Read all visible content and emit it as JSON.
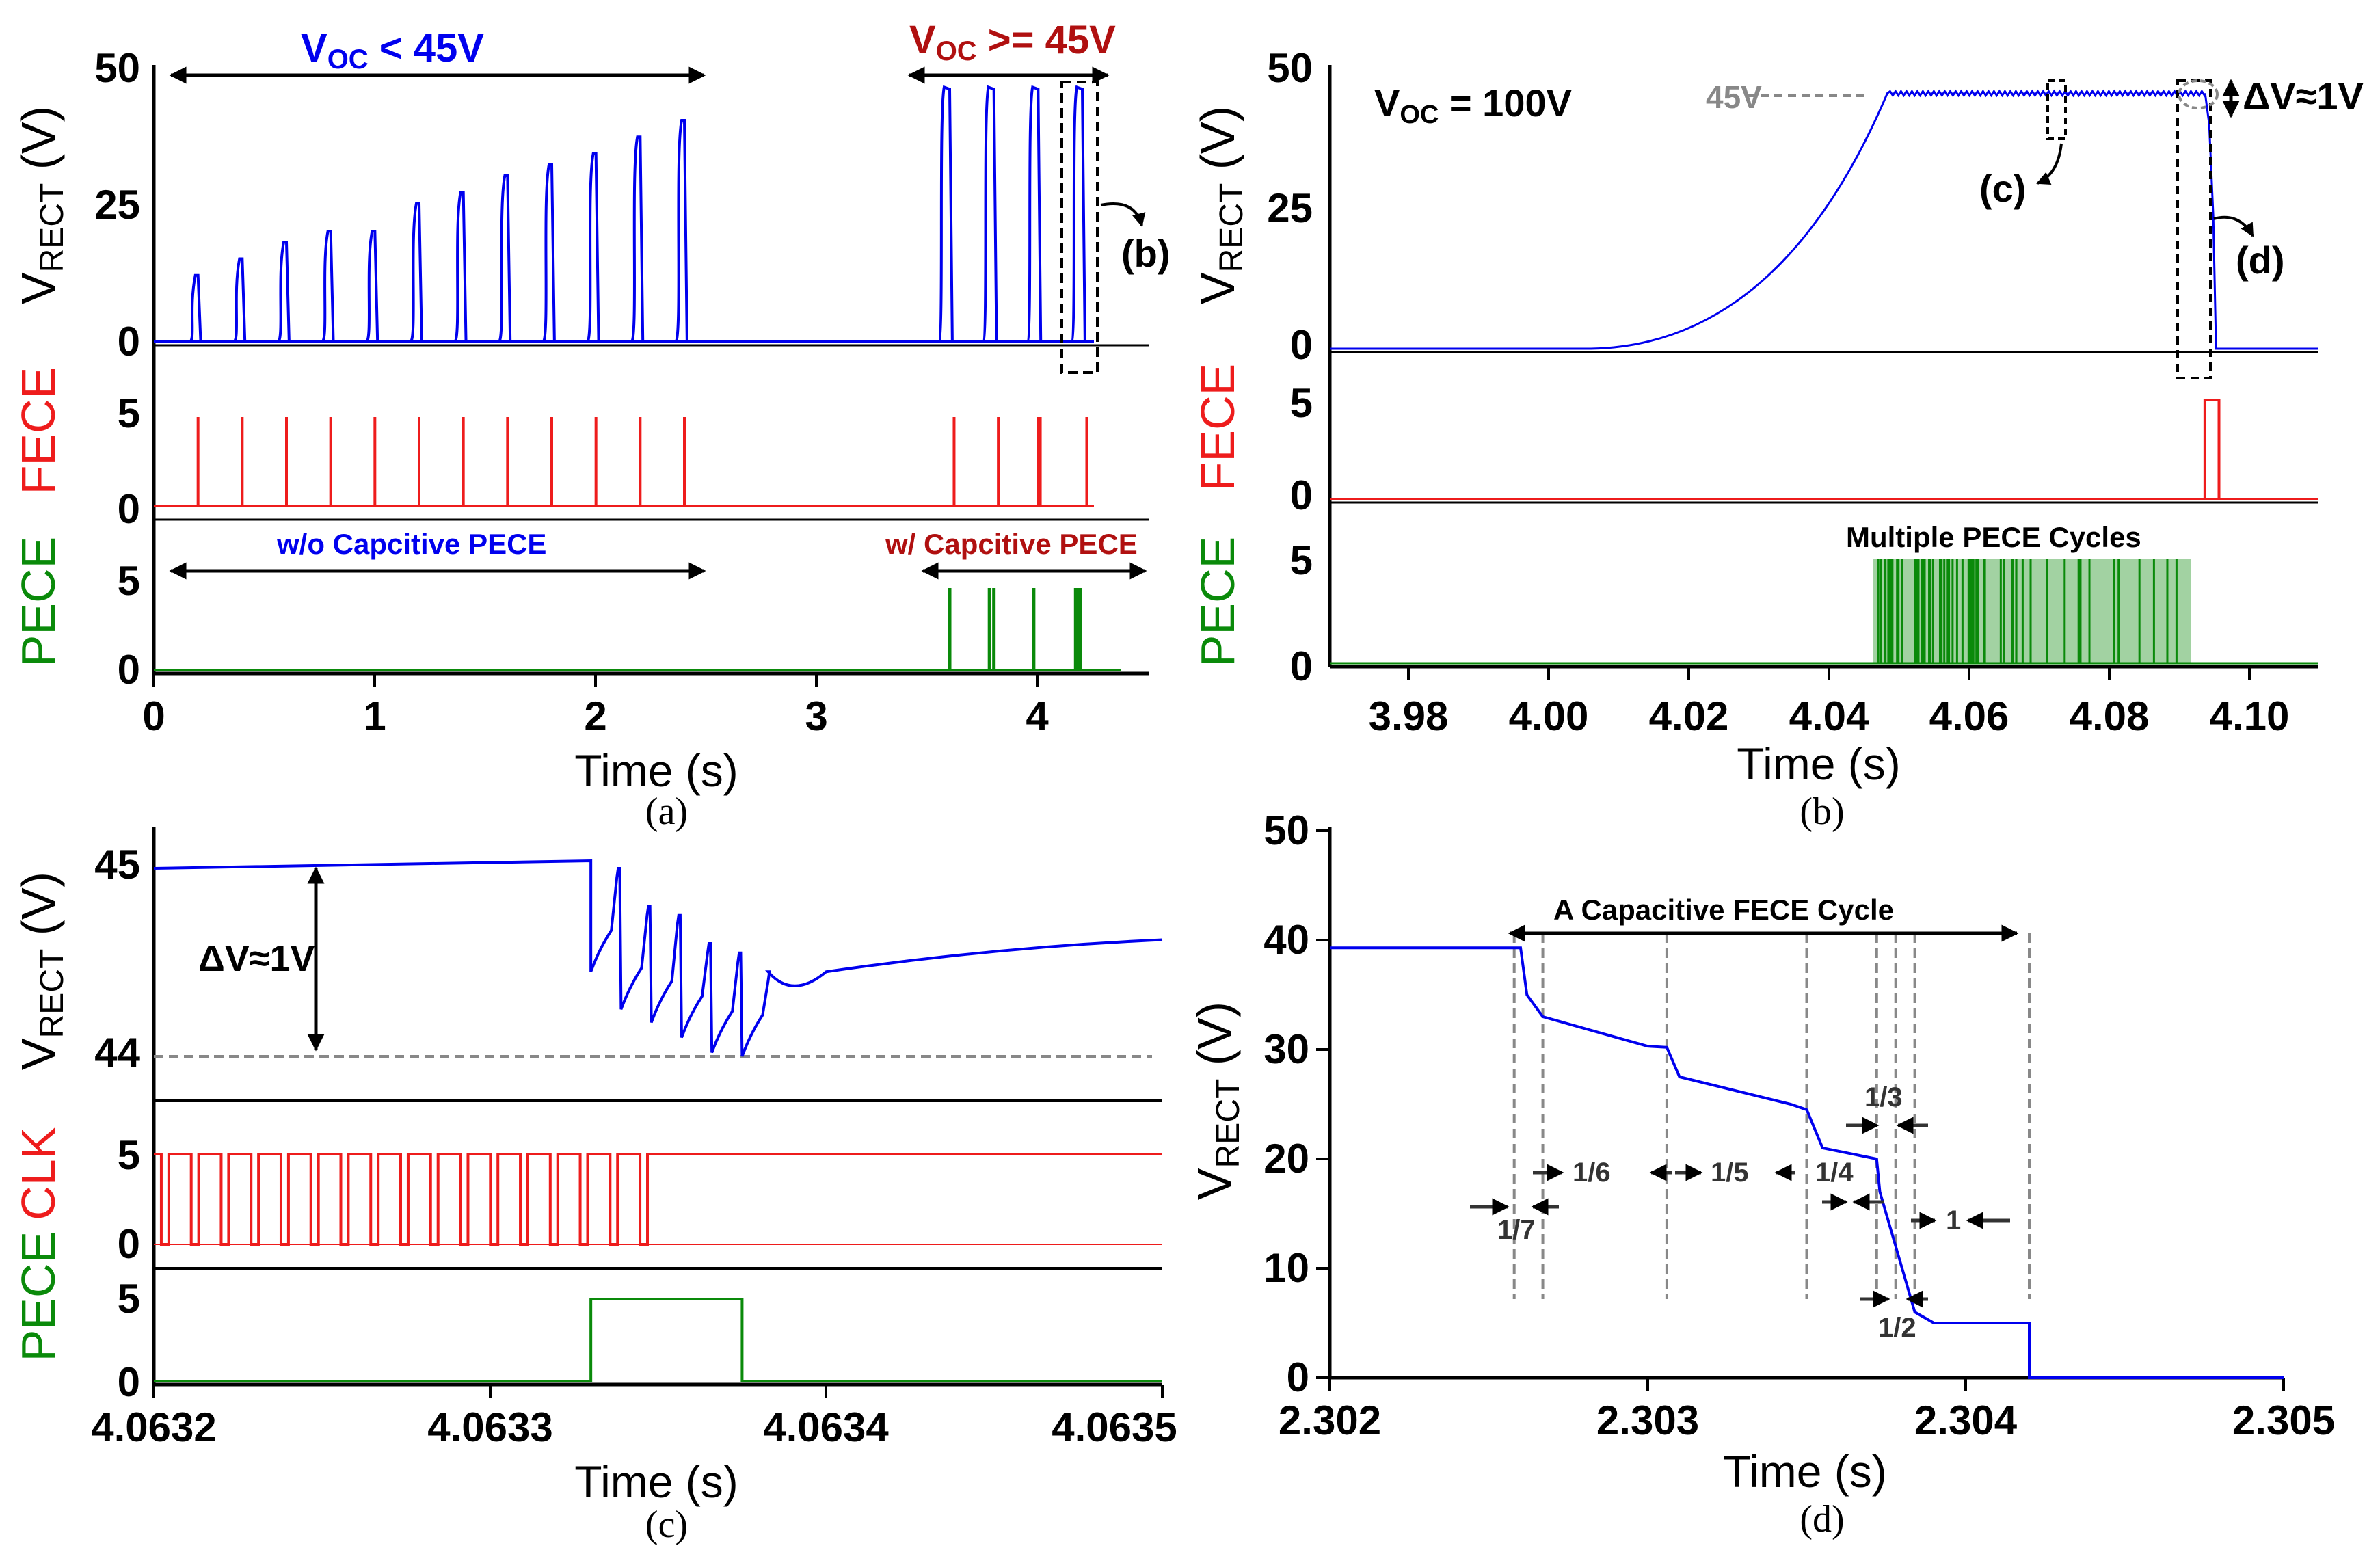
{
  "colors": {
    "blue": "#0000ee",
    "red": "#ee1c1c",
    "darkred": "#b01010",
    "green": "#0a8a0a",
    "gray": "#888888",
    "black": "#000000"
  },
  "chart_data": [
    {
      "panel": "a",
      "type": "line",
      "caption": "(a)",
      "xlabel": "Time (s)",
      "xlim": [
        0,
        4.5
      ],
      "xticks": [
        "0",
        "1",
        "2",
        "3",
        "4"
      ],
      "subplots": [
        {
          "name": "V_RECT",
          "ylabel_main": "V",
          "ylabel_sub": "RECT",
          "ylabel_unit": " (V)",
          "color": "blue",
          "ylim": [
            0,
            50
          ],
          "yticks": [
            "0",
            "25",
            "50"
          ],
          "pulse_times": [
            0.2,
            0.4,
            0.6,
            0.8,
            1.0,
            1.2,
            1.4,
            1.6,
            1.8,
            2.0,
            2.2,
            2.4
          ],
          "pulse_peaks": [
            12,
            15,
            18,
            20,
            20,
            25,
            27,
            30,
            32,
            34,
            37,
            40
          ],
          "sat_times": [
            3.6,
            3.8,
            4.0,
            4.2
          ],
          "sat_peak": 46
        },
        {
          "name": "FECE",
          "ylabel": "FECE",
          "color": "red",
          "ylim": [
            0,
            5
          ],
          "yticks": [
            "0",
            "5"
          ],
          "pulse_times": [
            0.2,
            0.4,
            0.6,
            0.8,
            1.0,
            1.2,
            1.4,
            1.6,
            1.8,
            2.0,
            2.2,
            2.4,
            3.62,
            3.82,
            4.0,
            4.01,
            4.22
          ]
        },
        {
          "name": "PECE",
          "ylabel": "PECE",
          "color": "green",
          "ylim": [
            0,
            5
          ],
          "yticks": [
            "0",
            "5"
          ],
          "pulse_times": [
            3.6,
            3.78,
            3.8,
            3.98,
            4.17,
            4.18,
            4.19
          ]
        }
      ],
      "annotations": {
        "voc_low_main": "V",
        "voc_low_sub": "OC",
        "voc_low_rest": " < 45V",
        "voc_high_main": "V",
        "voc_high_sub": "OC",
        "voc_high_rest": " >= 45V",
        "ref_b": "(b)",
        "pece_off": "w/o Capcitive PECE",
        "pece_on": "w/ Capcitive PECE"
      }
    },
    {
      "panel": "b",
      "type": "line",
      "caption": "(b)",
      "xlabel": "Time (s)",
      "xlim": [
        3.97,
        4.11
      ],
      "xticks": [
        "3.98",
        "4.00",
        "4.02",
        "4.04",
        "4.06",
        "4.08",
        "4.10"
      ],
      "subplots": [
        {
          "name": "V_RECT",
          "ylabel_main": "V",
          "ylabel_sub": "RECT",
          "ylabel_unit": " (V)",
          "color": "blue",
          "ylim": [
            0,
            50
          ],
          "yticks": [
            "0",
            "25",
            "50"
          ],
          "charge_start": 4.007,
          "charge_end": 4.049,
          "plateau": 45,
          "drop_time": 4.095
        },
        {
          "name": "FECE",
          "ylabel": "FECE",
          "color": "red",
          "ylim": [
            0,
            5
          ],
          "yticks": [
            "0",
            "5"
          ],
          "pulse_start": 4.094,
          "pulse_end": 4.096
        },
        {
          "name": "PECE",
          "ylabel": "PECE",
          "color": "green",
          "ylim": [
            0,
            5
          ],
          "yticks": [
            "0",
            "5"
          ],
          "burst_start": 4.047,
          "burst_end": 4.092
        }
      ],
      "annotations": {
        "voc_main": "V",
        "voc_sub": "OC",
        "voc_rest": " = 100V",
        "level_45": "45V",
        "dv": "ΔV≈1V",
        "ref_c": "(c)",
        "ref_d": "(d)",
        "multi": "Multiple PECE Cycles"
      }
    },
    {
      "panel": "c",
      "type": "line",
      "caption": "(c)",
      "xlabel": "Time (s)",
      "xlim": [
        4.0632,
        4.0635
      ],
      "xticks": [
        "4.0632",
        "4.0633",
        "4.0634",
        "4.0635"
      ],
      "subplots": [
        {
          "name": "V_RECT",
          "ylabel_main": "V",
          "ylabel_sub": "RECT",
          "ylabel_unit": " (V)",
          "color": "blue",
          "ylim": [
            43.8,
            45.1
          ],
          "yticks": [
            "44",
            "45"
          ],
          "step_times": [
            4.06333,
            4.063339,
            4.063348,
            4.063357,
            4.063366,
            4.063375
          ],
          "ref_level": 44,
          "end_level": 44.62
        },
        {
          "name": "CLK",
          "ylabel_a": "PECE",
          "ylabel_b": "CLK",
          "color": "red",
          "ylim": [
            0,
            5
          ],
          "yticks": [
            "0",
            "5"
          ],
          "period": 8.9e-06,
          "cycles": 17
        },
        {
          "name": "PECE",
          "ylabel": "PECE",
          "color": "green",
          "ylim": [
            0,
            5
          ],
          "yticks": [
            "0",
            "5"
          ],
          "pulse_start": 4.06333,
          "pulse_end": 4.063375
        }
      ],
      "annotations": {
        "dv": "ΔV≈1V"
      }
    },
    {
      "panel": "d",
      "type": "line",
      "caption": "(d)",
      "xlabel": "Time (s)",
      "xlim": [
        2.302,
        2.305
      ],
      "xticks": [
        "2.302",
        "2.303",
        "2.304",
        "2.305"
      ],
      "ylabel_main": "V",
      "ylabel_sub": "RECT",
      "ylabel_unit": " (V)",
      "ylim": [
        0,
        50
      ],
      "yticks": [
        "0",
        "10",
        "20",
        "30",
        "40",
        "50"
      ],
      "points": [
        [
          2.302,
          39.3
        ],
        [
          2.3026,
          39.3
        ],
        [
          2.30262,
          35
        ],
        [
          2.30267,
          33
        ],
        [
          2.303,
          30.3
        ],
        [
          2.30306,
          30.2
        ],
        [
          2.3031,
          27.5
        ],
        [
          2.30345,
          25
        ],
        [
          2.3035,
          24.5
        ],
        [
          2.30355,
          21
        ],
        [
          2.30372,
          20
        ],
        [
          2.30373,
          17
        ],
        [
          2.30378,
          12
        ],
        [
          2.30384,
          6
        ],
        [
          2.3039,
          5
        ],
        [
          2.3042,
          5
        ],
        [
          2.3042,
          0
        ],
        [
          2.305,
          0
        ]
      ],
      "annotations": {
        "cycle": "A Capacitive FECE Cycle",
        "f17": "1/7",
        "f16": "1/6",
        "f15": "1/5",
        "f14": "1/4",
        "f13": "1/3",
        "f12": "1/2",
        "f1": "1"
      }
    }
  ]
}
